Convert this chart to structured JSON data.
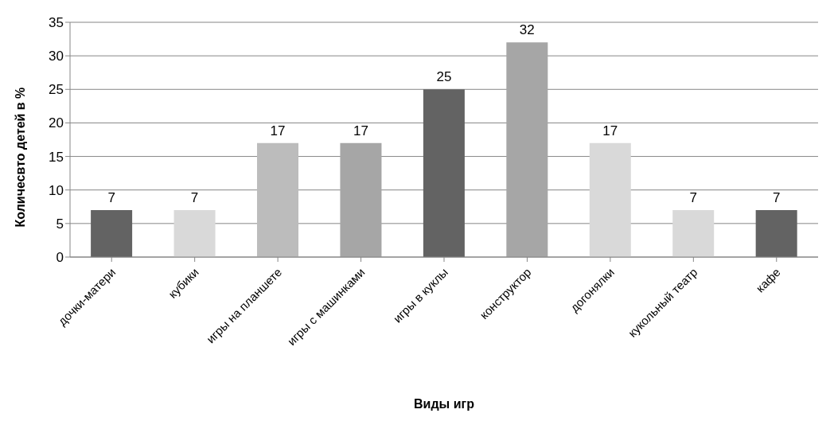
{
  "chart_data": {
    "type": "bar",
    "categories": [
      "дочки-матери",
      "кубики",
      "игры на планшете",
      "игры с машинками",
      "игры в куклы",
      "конструктор",
      "догонялки",
      "кукольный театр",
      "кафе"
    ],
    "values": [
      7,
      7,
      17,
      17,
      25,
      32,
      17,
      7,
      7
    ],
    "colors": [
      "#636363",
      "#d9d9d9",
      "#bcbcbc",
      "#a6a6a6",
      "#636363",
      "#a6a6a6",
      "#d9d9d9",
      "#d9d9d9",
      "#636363"
    ],
    "xlabel": "Виды игр",
    "ylabel": "Количесвто детей в %",
    "ylim": [
      0,
      35
    ],
    "yticks": [
      0,
      5,
      10,
      15,
      20,
      25,
      30,
      35
    ],
    "grid": "y",
    "data_labels": true
  }
}
